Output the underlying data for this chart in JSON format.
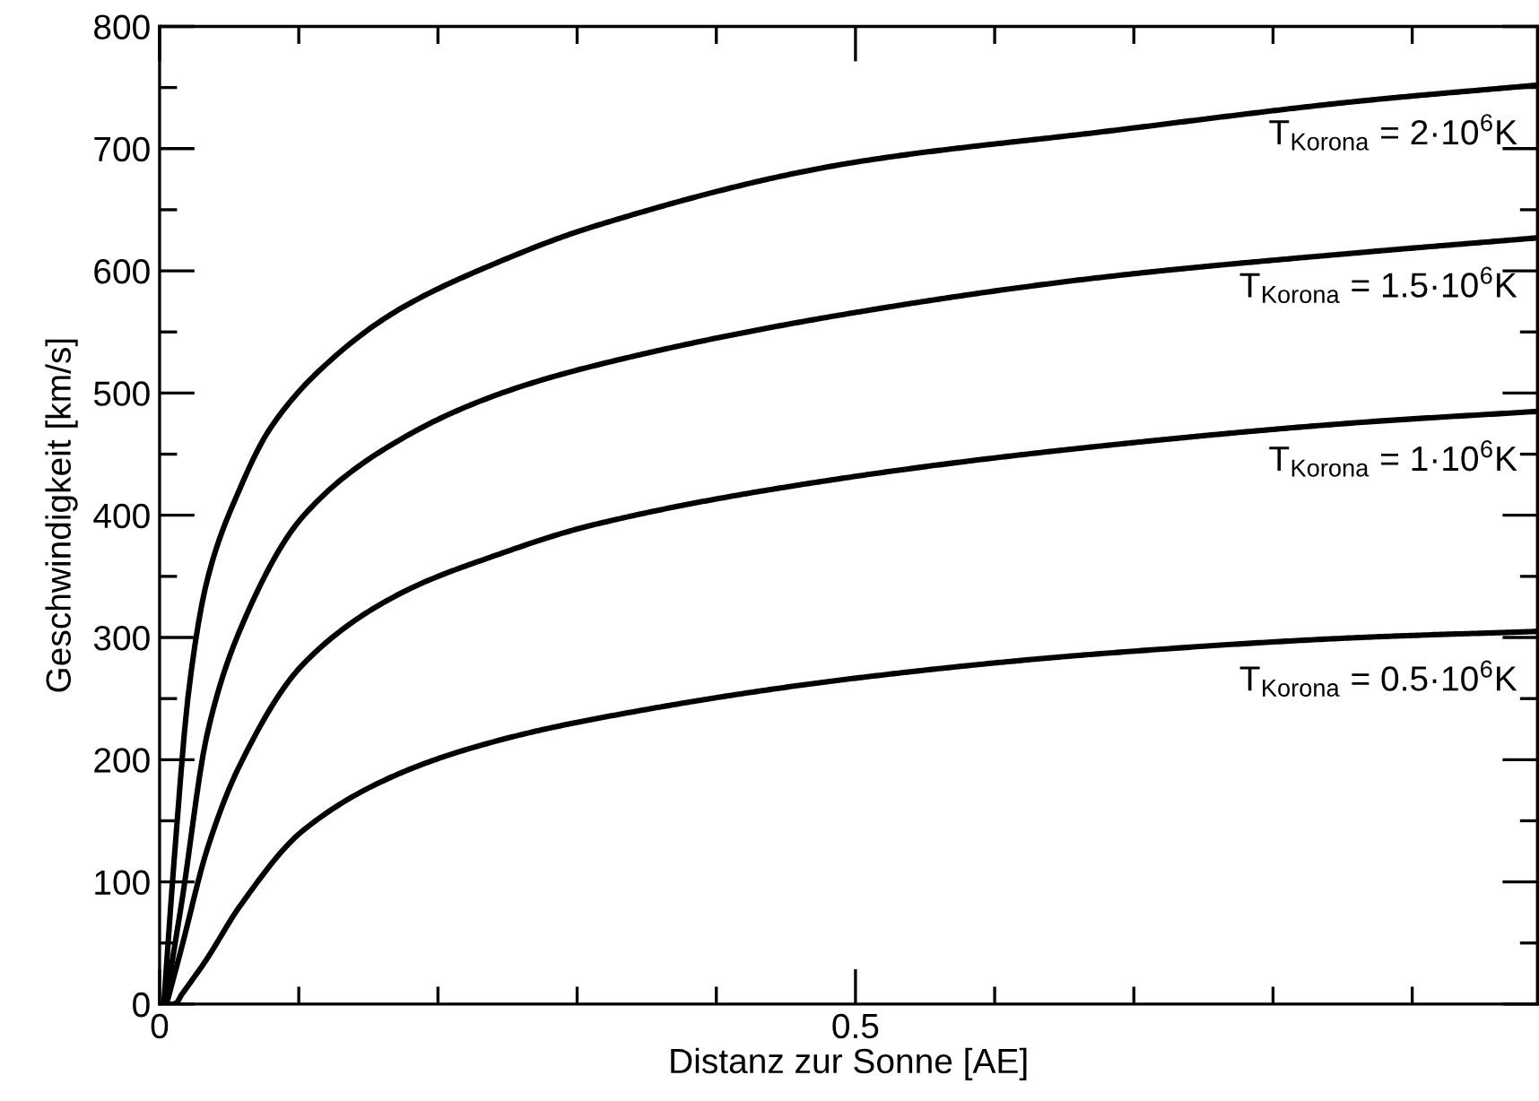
{
  "chart_data": {
    "type": "line",
    "xlabel": "Distanz zur Sonne [AE]",
    "ylabel": "Geschwindigkeit [km/s]",
    "xlim": [
      0,
      0.99
    ],
    "ylim": [
      0,
      800
    ],
    "xticks": [
      0,
      {
        "value": 0.1,
        "label": null
      },
      {
        "value": 0.2,
        "label": null
      },
      {
        "value": 0.3,
        "label": null
      },
      {
        "value": 0.4,
        "label": null
      },
      0.5,
      {
        "value": 0.6,
        "label": null
      },
      {
        "value": 0.7,
        "label": null
      },
      {
        "value": 0.8,
        "label": null
      },
      {
        "value": 0.9,
        "label": null
      }
    ],
    "yticks": [
      0,
      {
        "value": 50,
        "label": null
      },
      100,
      {
        "value": 150,
        "label": null
      },
      200,
      {
        "value": 250,
        "label": null
      },
      300,
      {
        "value": 350,
        "label": null
      },
      400,
      {
        "value": 450,
        "label": null
      },
      500,
      {
        "value": 550,
        "label": null
      },
      600,
      {
        "value": 650,
        "label": null
      },
      700,
      {
        "value": 750,
        "label": null
      },
      800
    ],
    "grid": false,
    "legend": false,
    "annotations": [
      "T$_{Korona}$ = 2·10$^{6}$K",
      "T$_{Korona}$ = 1.5·10$^{6}$K",
      "T$_{Korona}$ = 1·10$^{6}$K",
      "T$_{Korona}$ = 0.5·10$^{6}$K"
    ],
    "marker": "none",
    "line_style": "solid",
    "series": [
      {
        "color": "#000000",
        "x": [
          0.003,
          0.011,
          0.021,
          0.034,
          0.057,
          0.08,
          0.126,
          0.173,
          0.241,
          0.311,
          0.495,
          0.679,
          0.863,
          0.99
        ],
        "values": [
          0,
          126,
          257,
          346,
          420,
          472,
          530,
          569,
          606,
          636,
          688,
          714,
          739,
          752
        ]
      },
      {
        "color": "#000000",
        "x": [
          0.004,
          0.016,
          0.034,
          0.057,
          0.103,
          0.173,
          0.241,
          0.311,
          0.495,
          0.679,
          0.863,
          0.99
        ],
        "values": [
          0,
          84,
          220,
          304,
          399,
          462,
          498,
          522,
          565,
          595,
          615,
          627
        ]
      },
      {
        "color": "#000000",
        "x": [
          0.005,
          0.016,
          0.034,
          0.057,
          0.103,
          0.173,
          0.241,
          0.311,
          0.495,
          0.679,
          0.863,
          0.99
        ],
        "values": [
          0,
          47,
          126,
          194,
          278,
          336,
          367,
          392,
          431,
          457,
          476,
          485
        ]
      },
      {
        "color": "#000000",
        "x": [
          0.003,
          0.011,
          0.016,
          0.034,
          0.057,
          0.103,
          0.173,
          0.241,
          0.311,
          0.495,
          0.679,
          0.863,
          0.99
        ],
        "values": [
          0,
          0,
          8,
          37,
          79,
          142,
          189,
          215,
          233,
          266,
          287,
          300,
          305
        ]
      }
    ]
  }
}
